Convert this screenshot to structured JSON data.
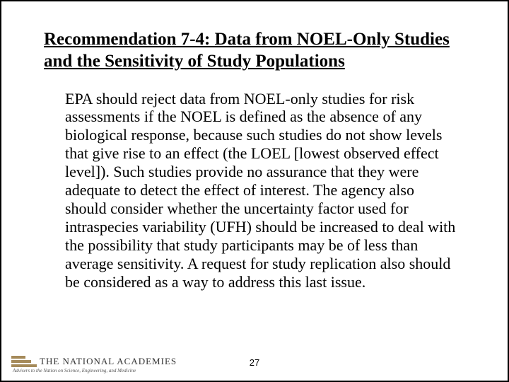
{
  "slide": {
    "heading": "Recommendation 7-4:  Data from NOEL-Only Studies and the Sensitivity of Study Populations",
    "body": "EPA should reject data from NOEL-only studies for risk assessments if the NOEL is defined as the absence of any biological response, because such studies do not show levels that give rise to an effect (the LOEL [lowest observed effect level]).  Such studies provide no assurance that they were adequate to detect the effect of interest. The agency also should consider whether the uncertainty factor used for intraspecies variability (UFH) should be increased to deal with the possibility that study participants may be of less than average sensitivity.  A request for study replication also should be considered as a way to address this last issue."
  },
  "footer": {
    "logo_title": "THE NATIONAL ACADEMIES",
    "logo_subtitle": "Advisers to the Nation on Science, Engineering, and Medicine",
    "page_number": "27"
  },
  "colors": {
    "border": "#000000",
    "background": "#ffffff",
    "logo_bar": "#a58a5a",
    "text": "#000000"
  }
}
